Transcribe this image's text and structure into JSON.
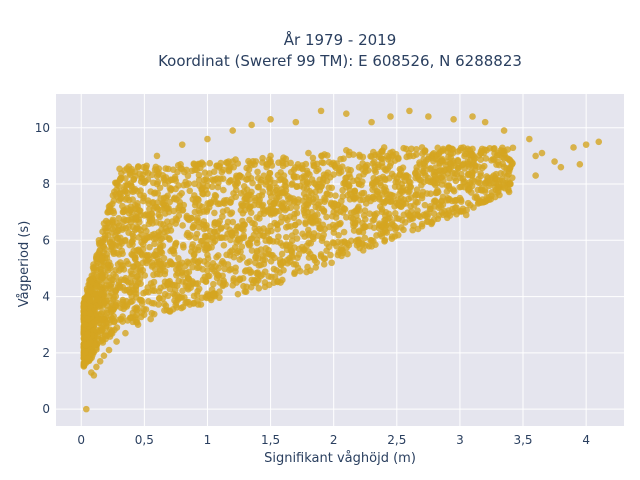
{
  "chart_data": {
    "type": "scatter",
    "title_line1": "År 1979 - 2019",
    "title_line2": "Koordinat (Sweref 99 TM): E 608526, N 6288823",
    "xlabel": "Signifikant våghöjd (m)",
    "ylabel": "Vågperiod (s)",
    "xlim": [
      -0.2,
      4.3
    ],
    "ylim": [
      -0.6,
      11.2
    ],
    "x_ticks": [
      0,
      0.5,
      1,
      1.5,
      2,
      2.5,
      3,
      3.5,
      4
    ],
    "x_tick_labels": [
      "0",
      "0,5",
      "1",
      "1,5",
      "2",
      "2,5",
      "3",
      "3,5",
      "4"
    ],
    "y_ticks": [
      0,
      2,
      4,
      6,
      8,
      10
    ],
    "y_tick_labels": [
      "0",
      "2",
      "4",
      "6",
      "8",
      "10"
    ],
    "grid": true,
    "marker_color": "#d4a520",
    "plot_background": "#e5e5ee",
    "series": [
      {
        "points": [
          [
            0.04,
            0.0
          ],
          [
            0.02,
            3.6
          ],
          [
            0.05,
            1.8
          ],
          [
            0.08,
            1.3
          ],
          [
            0.1,
            1.2
          ],
          [
            0.12,
            1.5
          ],
          [
            0.15,
            1.7
          ],
          [
            0.18,
            1.9
          ],
          [
            0.22,
            2.1
          ],
          [
            0.28,
            2.4
          ],
          [
            0.35,
            2.7
          ],
          [
            0.45,
            3.0
          ],
          [
            0.55,
            3.2
          ],
          [
            0.7,
            3.5
          ],
          [
            0.85,
            3.8
          ],
          [
            1.0,
            4.1
          ],
          [
            1.2,
            4.4
          ],
          [
            1.4,
            4.8
          ],
          [
            1.6,
            5.2
          ],
          [
            1.8,
            5.6
          ],
          [
            2.0,
            5.9
          ],
          [
            2.2,
            6.3
          ],
          [
            2.4,
            6.6
          ],
          [
            2.6,
            6.9
          ],
          [
            2.8,
            7.2
          ],
          [
            3.0,
            7.5
          ],
          [
            3.2,
            7.8
          ],
          [
            3.4,
            8.0
          ],
          [
            3.6,
            8.3
          ],
          [
            3.8,
            8.6
          ],
          [
            3.9,
            9.3
          ],
          [
            4.0,
            9.4
          ],
          [
            4.1,
            9.5
          ],
          [
            3.95,
            8.7
          ],
          [
            3.75,
            8.8
          ],
          [
            3.65,
            9.1
          ],
          [
            3.55,
            9.6
          ],
          [
            3.35,
            9.9
          ],
          [
            3.2,
            10.2
          ],
          [
            3.1,
            10.4
          ],
          [
            2.95,
            10.3
          ],
          [
            2.75,
            10.4
          ],
          [
            2.6,
            10.6
          ],
          [
            2.45,
            10.4
          ],
          [
            2.3,
            10.2
          ],
          [
            2.1,
            10.5
          ],
          [
            1.9,
            10.6
          ],
          [
            1.7,
            10.2
          ],
          [
            1.5,
            10.3
          ],
          [
            1.35,
            10.1
          ],
          [
            1.2,
            9.9
          ],
          [
            1.0,
            9.6
          ],
          [
            0.8,
            9.4
          ],
          [
            0.6,
            9.0
          ],
          [
            0.45,
            8.6
          ],
          [
            0.35,
            8.2
          ],
          [
            0.28,
            7.8
          ],
          [
            0.22,
            7.2
          ],
          [
            0.18,
            6.6
          ],
          [
            0.14,
            6.0
          ],
          [
            0.1,
            5.0
          ],
          [
            0.07,
            4.2
          ],
          [
            0.05,
            3.2
          ],
          [
            0.3,
            5.5
          ],
          [
            0.5,
            6.0
          ],
          [
            0.7,
            6.5
          ],
          [
            0.9,
            7.0
          ],
          [
            1.1,
            7.3
          ],
          [
            1.3,
            7.5
          ],
          [
            1.6,
            7.7
          ],
          [
            1.9,
            7.9
          ],
          [
            2.2,
            8.0
          ],
          [
            2.5,
            8.2
          ],
          [
            2.8,
            8.3
          ],
          [
            3.1,
            8.4
          ],
          [
            3.4,
            8.6
          ],
          [
            2.0,
            7.0
          ],
          [
            1.5,
            6.5
          ],
          [
            1.0,
            5.8
          ],
          [
            0.6,
            4.8
          ],
          [
            0.4,
            4.0
          ],
          [
            0.25,
            3.5
          ],
          [
            0.2,
            5.0
          ],
          [
            0.4,
            7.0
          ],
          [
            0.6,
            8.0
          ],
          [
            0.9,
            8.5
          ],
          [
            1.2,
            8.8
          ],
          [
            1.5,
            9.0
          ],
          [
            1.8,
            9.1
          ],
          [
            2.1,
            9.2
          ],
          [
            2.4,
            9.3
          ],
          [
            2.7,
            9.3
          ],
          [
            3.0,
            9.2
          ],
          [
            3.3,
            9.1
          ],
          [
            3.6,
            9.0
          ],
          [
            2.9,
            6.8
          ],
          [
            2.7,
            6.5
          ],
          [
            3.05,
            6.9
          ],
          [
            2.3,
            6.0
          ],
          [
            1.9,
            5.5
          ]
        ]
      }
    ]
  }
}
